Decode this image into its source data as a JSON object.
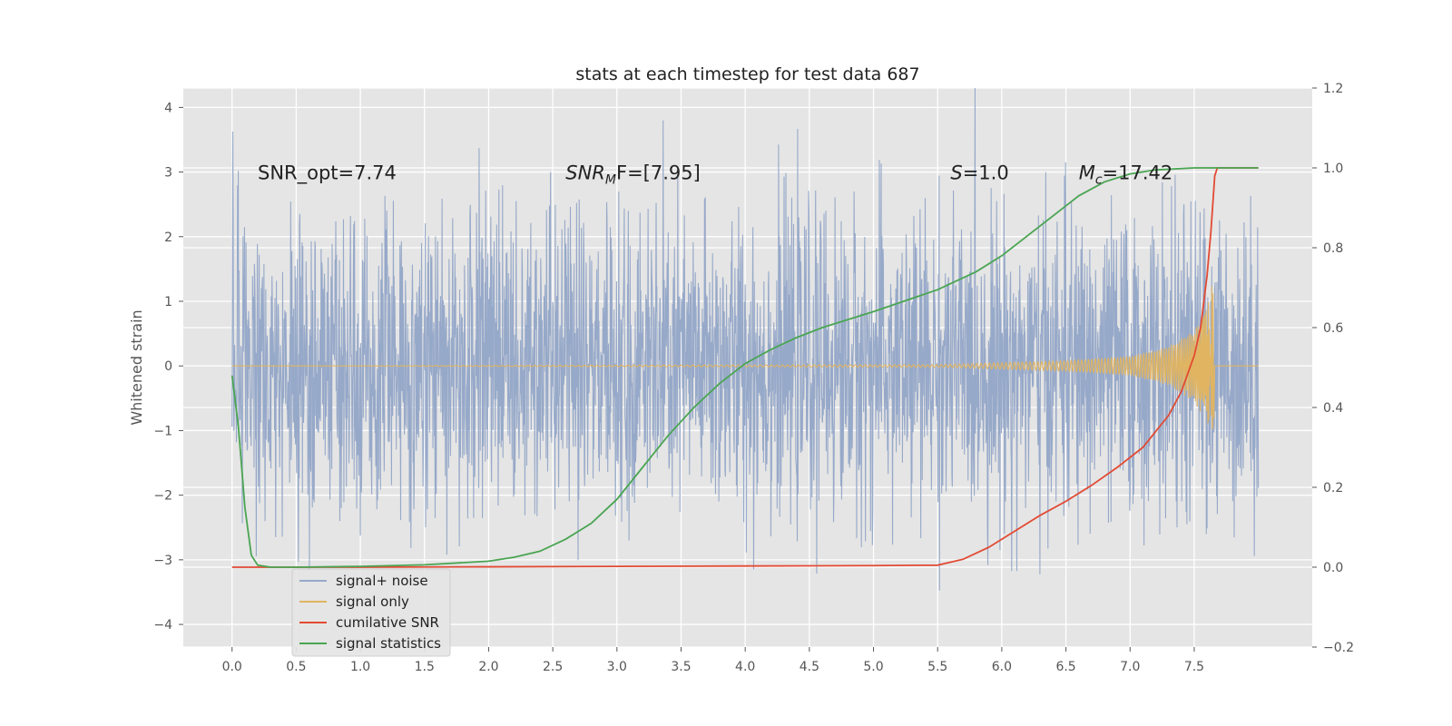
{
  "chart_data": {
    "type": "line",
    "title": "stats at each timestep for test data 687",
    "ylabel": "Whitened strain",
    "xlim": [
      -0.38,
      8.42
    ],
    "ylim_left": [
      -4.35,
      4.3
    ],
    "ylim_right": [
      -0.2,
      1.2
    ],
    "x_ticks": [
      0.0,
      0.5,
      1.0,
      1.5,
      2.0,
      2.5,
      3.0,
      3.5,
      4.0,
      4.5,
      5.0,
      5.5,
      6.0,
      6.5,
      7.0,
      7.5
    ],
    "x_tick_labels": [
      "0.0",
      "0.5",
      "1.0",
      "1.5",
      "2.0",
      "2.5",
      "3.0",
      "3.5",
      "4.0",
      "4.5",
      "5.0",
      "5.5",
      "6.0",
      "6.5",
      "7.0",
      "7.5"
    ],
    "y_left_ticks": [
      -4,
      -3,
      -2,
      -1,
      0,
      1,
      2,
      3,
      4
    ],
    "y_left_tick_labels": [
      "−4",
      "−3",
      "−2",
      "−1",
      "0",
      "1",
      "2",
      "3",
      "4"
    ],
    "y_right_ticks": [
      -0.2,
      0.0,
      0.2,
      0.4,
      0.6,
      0.8,
      1.0,
      1.2
    ],
    "y_right_tick_labels": [
      "−0.2",
      "0.0",
      "0.2",
      "0.4",
      "0.6",
      "0.8",
      "1.0",
      "1.2"
    ],
    "grid": true,
    "legend_position": "lower-left",
    "annotations": [
      {
        "text": "SNR_opt=7.74",
        "x": 0.2,
        "y": 3.0
      },
      {
        "text": "SNR",
        "sub": "M",
        "rest": "F=[7.95]",
        "italic": true,
        "x": 2.6,
        "y": 3.0
      },
      {
        "text": "S",
        "rest": "=1.0",
        "italic": true,
        "x": 5.6,
        "y": 3.0
      },
      {
        "text": "M",
        "sub": "c",
        "rest": "=17.42",
        "italic": true,
        "x": 6.6,
        "y": 3.0
      }
    ],
    "series": [
      {
        "name": "signal+ noise",
        "axis": "left",
        "color": "#97a9c9",
        "generated": true,
        "x_range": [
          0.0,
          8.0
        ],
        "amplitude_sigma": 1.0
      },
      {
        "name": "signal only",
        "axis": "left",
        "color": "#e0b461",
        "chirp": true,
        "x_range": [
          0.0,
          8.0
        ],
        "merger_x": 7.65,
        "envelope": {
          "x": [
            0.0,
            5.5,
            6.5,
            7.0,
            7.3,
            7.5,
            7.6,
            7.65,
            7.66
          ],
          "y": [
            0.0,
            0.02,
            0.08,
            0.15,
            0.3,
            0.55,
            0.9,
            1.4,
            0.0
          ]
        }
      },
      {
        "name": "cumilative SNR",
        "axis": "right",
        "color": "#e24a33",
        "x": [
          0.0,
          1.0,
          2.0,
          3.0,
          4.0,
          5.0,
          5.5,
          5.7,
          5.9,
          6.1,
          6.3,
          6.5,
          6.7,
          6.9,
          7.1,
          7.3,
          7.4,
          7.5,
          7.55,
          7.6,
          7.63,
          7.66,
          7.68,
          8.0
        ],
        "y": [
          0.0,
          0.0,
          0.001,
          0.002,
          0.003,
          0.004,
          0.005,
          0.02,
          0.05,
          0.09,
          0.13,
          0.165,
          0.205,
          0.25,
          0.3,
          0.38,
          0.44,
          0.53,
          0.6,
          0.73,
          0.84,
          0.98,
          1.0,
          1.0
        ]
      },
      {
        "name": "signal statistics",
        "axis": "right",
        "color": "#348abd",
        "line_color": "#4aa552",
        "x": [
          0.0,
          0.05,
          0.1,
          0.15,
          0.2,
          0.3,
          0.5,
          1.0,
          1.5,
          2.0,
          2.2,
          2.4,
          2.6,
          2.8,
          3.0,
          3.2,
          3.4,
          3.6,
          3.8,
          4.0,
          4.2,
          4.4,
          4.6,
          5.0,
          5.5,
          5.8,
          6.0,
          6.2,
          6.4,
          6.6,
          6.8,
          7.0,
          7.2,
          7.5,
          7.7,
          8.0
        ],
        "y": [
          0.48,
          0.35,
          0.15,
          0.03,
          0.005,
          0.0,
          0.0,
          0.002,
          0.006,
          0.015,
          0.025,
          0.04,
          0.07,
          0.11,
          0.17,
          0.25,
          0.33,
          0.4,
          0.46,
          0.51,
          0.545,
          0.575,
          0.6,
          0.64,
          0.695,
          0.74,
          0.78,
          0.83,
          0.88,
          0.93,
          0.965,
          0.985,
          0.995,
          1.0,
          1.0,
          1.0
        ]
      }
    ]
  }
}
